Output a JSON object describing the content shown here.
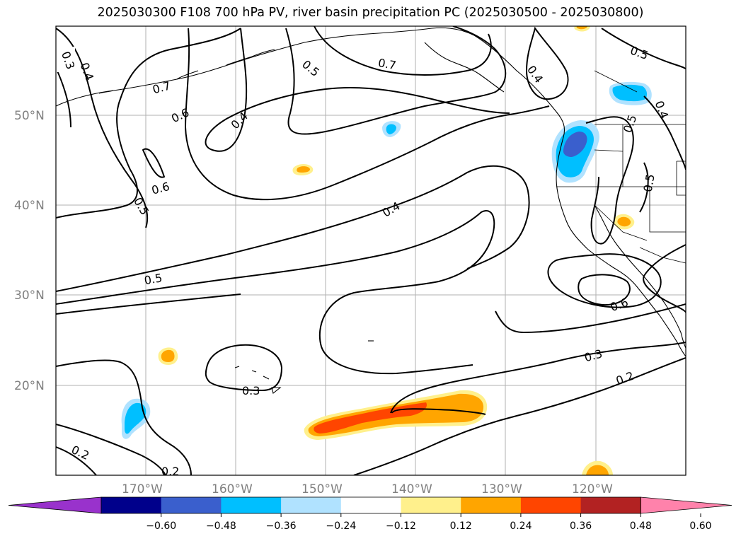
{
  "title": "2025030300 F108 700 hPa PV, river basin precipitation PC (2025030500 - 2025030800)",
  "map": {
    "lat_ticks": [
      "50°N",
      "40°N",
      "30°N",
      "20°N"
    ],
    "lon_ticks": [
      "170°W",
      "160°W",
      "150°W",
      "140°W",
      "130°W",
      "120°W"
    ],
    "grid": true
  },
  "contour_labels": [
    "0.3",
    "0.4",
    "0.7",
    "0.6",
    "0.6",
    "0.5",
    "0.4",
    "0.5",
    "0.7",
    "0.4",
    "0.5",
    "0.5",
    "0.4",
    "0.5",
    "0.4",
    "0.5",
    "0.6",
    "0.3",
    "0.2",
    "0.3",
    "0.2",
    "0.2"
  ],
  "colorbar": {
    "ticks": [
      "−0.60",
      "−0.48",
      "−0.36",
      "−0.24",
      "−0.12",
      "0.12",
      "0.24",
      "0.36",
      "0.48",
      "0.60"
    ],
    "colors": [
      "#9932cc",
      "#00008b",
      "#3a5fcd",
      "#00bfff",
      "#b0e2ff",
      "#ffffff",
      "#fff08c",
      "#ffa500",
      "#ff4500",
      "#b22222",
      "#ff82ab"
    ]
  }
}
